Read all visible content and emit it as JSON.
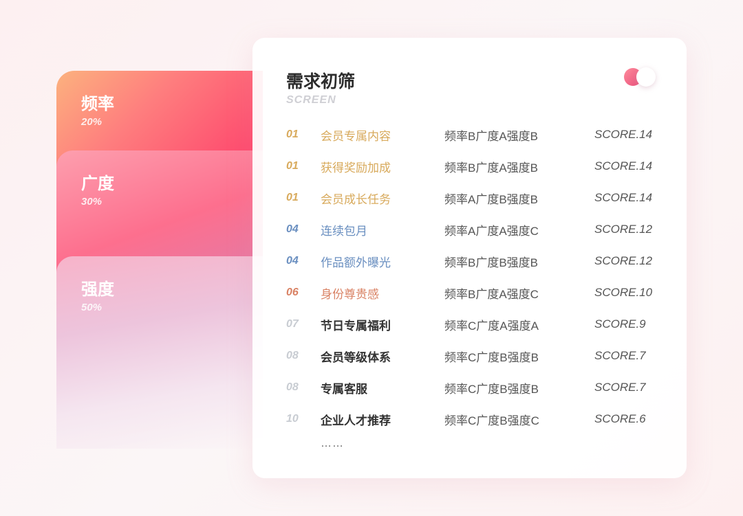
{
  "side_cards": [
    {
      "label": "频率",
      "percent": "20%"
    },
    {
      "label": "广度",
      "percent": "30%"
    },
    {
      "label": "强度",
      "percent": "50%"
    }
  ],
  "panel": {
    "title": "需求初筛",
    "subtitle": "SCREEN",
    "toggle_on": true,
    "rows": [
      {
        "rank": "01",
        "name": "会员专属内容",
        "grade": "频率B广度A强度B",
        "score": "SCORE.14",
        "color": "#d8aa5c"
      },
      {
        "rank": "01",
        "name": "获得奖励加成",
        "grade": "频率B广度A强度B",
        "score": "SCORE.14",
        "color": "#d8aa5c"
      },
      {
        "rank": "01",
        "name": "会员成长任务",
        "grade": "频率A广度B强度B",
        "score": "SCORE.14",
        "color": "#d8aa5c"
      },
      {
        "rank": "04",
        "name": "连续包月",
        "grade": "频率A广度A强度C",
        "score": "SCORE.12",
        "color": "#6a8fc0"
      },
      {
        "rank": "04",
        "name": "作品额外曝光",
        "grade": "频率B广度B强度B",
        "score": "SCORE.12",
        "color": "#6a8fc0"
      },
      {
        "rank": "06",
        "name": "身份尊贵感",
        "grade": "频率B广度A强度C",
        "score": "SCORE.10",
        "color": "#d98264"
      },
      {
        "rank": "07",
        "name": "节日专属福利",
        "grade": "频率C广度A强度A",
        "score": "SCORE.9",
        "color": "#333333"
      },
      {
        "rank": "08",
        "name": "会员等级体系",
        "grade": "频率C广度B强度B",
        "score": "SCORE.7",
        "color": "#333333"
      },
      {
        "rank": "08",
        "name": "专属客服",
        "grade": "频率C广度B强度B",
        "score": "SCORE.7",
        "color": "#333333"
      },
      {
        "rank": "10",
        "name": "企业人才推荐",
        "grade": "频率C广度B强度C",
        "score": "SCORE.6",
        "color": "#333333"
      }
    ],
    "more": "……"
  }
}
